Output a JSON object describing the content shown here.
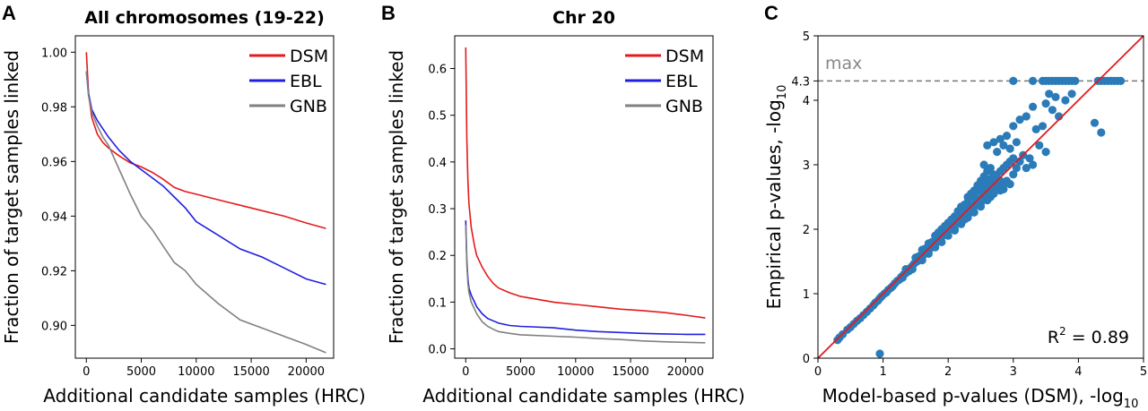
{
  "figure": {
    "panels": [
      {
        "letter": "A"
      },
      {
        "letter": "B"
      },
      {
        "letter": "C"
      }
    ]
  },
  "colors": {
    "DSM": "#e41a1c",
    "EBL": "#1f1fe0",
    "GNB": "#808080",
    "scatter": "#2b7bb9",
    "identity": "#e41a1c",
    "max_line": "#777777"
  },
  "chart_data": [
    {
      "type": "line",
      "panel": "A",
      "title": "All chromosomes (19-22)",
      "xlabel": "Additional candidate samples (HRC)",
      "ylabel": "Fraction of target samples linked",
      "xlim": [
        -1000,
        22500
      ],
      "ylim": [
        0.888,
        1.006
      ],
      "xticks": [
        0,
        5000,
        10000,
        15000,
        20000
      ],
      "yticks": [
        0.9,
        0.92,
        0.94,
        0.96,
        0.98,
        1.0
      ],
      "ytick_labels": [
        "0.90",
        "0.92",
        "0.94",
        "0.96",
        "0.98",
        "1.00"
      ],
      "legend_position": "top-right",
      "series": [
        {
          "name": "DSM",
          "x": [
            0,
            200,
            500,
            1000,
            1500,
            2000,
            3000,
            4000,
            5000,
            6000,
            7000,
            8000,
            9000,
            10000,
            12000,
            14000,
            16000,
            18000,
            20000,
            21800
          ],
          "y": [
            1.0,
            0.985,
            0.976,
            0.97,
            0.967,
            0.965,
            0.962,
            0.9595,
            0.958,
            0.956,
            0.9535,
            0.9505,
            0.949,
            0.948,
            0.946,
            0.944,
            0.942,
            0.94,
            0.9375,
            0.9355
          ]
        },
        {
          "name": "EBL",
          "x": [
            0,
            200,
            500,
            1000,
            1500,
            2000,
            3000,
            4000,
            5000,
            6000,
            7000,
            8000,
            9000,
            10000,
            12000,
            14000,
            16000,
            18000,
            20000,
            21800
          ],
          "y": [
            0.993,
            0.985,
            0.979,
            0.975,
            0.972,
            0.969,
            0.964,
            0.96,
            0.957,
            0.954,
            0.951,
            0.947,
            0.943,
            0.938,
            0.933,
            0.928,
            0.925,
            0.921,
            0.917,
            0.915
          ]
        },
        {
          "name": "GNB",
          "x": [
            0,
            200,
            500,
            1000,
            1500,
            2000,
            3000,
            4000,
            5000,
            6000,
            7000,
            8000,
            9000,
            10000,
            12000,
            14000,
            16000,
            18000,
            20000,
            21800
          ],
          "y": [
            0.993,
            0.984,
            0.978,
            0.973,
            0.969,
            0.966,
            0.957,
            0.948,
            0.94,
            0.935,
            0.929,
            0.923,
            0.92,
            0.915,
            0.908,
            0.902,
            0.899,
            0.896,
            0.893,
            0.89
          ]
        }
      ]
    },
    {
      "type": "line",
      "panel": "B",
      "title": "Chr 20",
      "xlabel": "Additional candidate samples (HRC)",
      "ylabel": "Fraction of target samples linked",
      "xlim": [
        -1000,
        22500
      ],
      "ylim": [
        -0.02,
        0.67
      ],
      "xticks": [
        0,
        5000,
        10000,
        15000,
        20000
      ],
      "yticks": [
        0.0,
        0.1,
        0.2,
        0.3,
        0.4,
        0.5,
        0.6
      ],
      "ytick_labels": [
        "0.0",
        "0.1",
        "0.2",
        "0.3",
        "0.4",
        "0.5",
        "0.6"
      ],
      "legend_position": "top-right",
      "series": [
        {
          "name": "DSM",
          "x": [
            0,
            100,
            200,
            300,
            500,
            800,
            1000,
            1500,
            2000,
            2500,
            3000,
            4000,
            5000,
            6000,
            8000,
            10000,
            12000,
            14000,
            16000,
            18000,
            20000,
            21800
          ],
          "y": [
            0.645,
            0.45,
            0.36,
            0.31,
            0.26,
            0.22,
            0.2,
            0.175,
            0.155,
            0.14,
            0.13,
            0.12,
            0.112,
            0.108,
            0.1,
            0.095,
            0.09,
            0.085,
            0.082,
            0.078,
            0.072,
            0.066
          ]
        },
        {
          "name": "EBL",
          "x": [
            0,
            100,
            200,
            300,
            500,
            800,
            1000,
            1500,
            2000,
            2500,
            3000,
            4000,
            5000,
            6000,
            8000,
            10000,
            12000,
            14000,
            16000,
            18000,
            20000,
            21800
          ],
          "y": [
            0.275,
            0.19,
            0.15,
            0.13,
            0.115,
            0.1,
            0.09,
            0.075,
            0.065,
            0.06,
            0.055,
            0.05,
            0.048,
            0.047,
            0.045,
            0.04,
            0.037,
            0.035,
            0.033,
            0.032,
            0.031,
            0.031
          ]
        },
        {
          "name": "GNB",
          "x": [
            0,
            100,
            200,
            300,
            500,
            800,
            1000,
            1500,
            2000,
            2500,
            3000,
            4000,
            5000,
            6000,
            8000,
            10000,
            12000,
            14000,
            16000,
            18000,
            20000,
            21800
          ],
          "y": [
            0.265,
            0.18,
            0.14,
            0.12,
            0.1,
            0.085,
            0.075,
            0.058,
            0.048,
            0.042,
            0.037,
            0.033,
            0.03,
            0.029,
            0.027,
            0.025,
            0.022,
            0.02,
            0.017,
            0.015,
            0.014,
            0.013
          ]
        }
      ]
    },
    {
      "type": "scatter",
      "panel": "C",
      "title": "",
      "xlabel": "Model-based p-values (DSM), -log",
      "xlabel_sub": "10",
      "ylabel": "Empirical p-values, -log",
      "ylabel_sub": "10",
      "xlim": [
        0,
        5
      ],
      "ylim": [
        0,
        5
      ],
      "xticks": [
        0,
        1,
        2,
        3,
        4,
        5
      ],
      "yticks": [
        0,
        1,
        2,
        3,
        4,
        5
      ],
      "extra_ytick": {
        "value": 4.3,
        "label": "4.3"
      },
      "max_line": {
        "y": 4.3,
        "label": "max"
      },
      "identity_line": true,
      "annotation": {
        "prefix": "R",
        "superscript": "2",
        "rest": " = 0.89"
      },
      "points": [
        [
          0.3,
          0.28
        ],
        [
          0.33,
          0.32
        ],
        [
          0.38,
          0.37
        ],
        [
          0.45,
          0.44
        ],
        [
          0.5,
          0.48
        ],
        [
          0.55,
          0.53
        ],
        [
          0.6,
          0.58
        ],
        [
          0.65,
          0.62
        ],
        [
          0.7,
          0.67
        ],
        [
          0.75,
          0.72
        ],
        [
          0.8,
          0.77
        ],
        [
          0.85,
          0.82
        ],
        [
          0.88,
          0.86
        ],
        [
          0.92,
          0.89
        ],
        [
          0.95,
          0.93
        ],
        [
          0.98,
          0.96
        ],
        [
          1.02,
          1.0
        ],
        [
          1.05,
          1.02
        ],
        [
          1.08,
          1.06
        ],
        [
          1.12,
          1.09
        ],
        [
          1.15,
          1.12
        ],
        [
          1.18,
          1.16
        ],
        [
          1.22,
          1.2
        ],
        [
          1.25,
          1.22
        ],
        [
          1.28,
          1.26
        ],
        [
          1.32,
          1.3
        ],
        [
          1.35,
          1.32
        ],
        [
          1.38,
          1.36
        ],
        [
          1.42,
          1.4
        ],
        [
          1.45,
          1.43
        ],
        [
          1.48,
          1.47
        ],
        [
          1.52,
          1.5
        ],
        [
          1.55,
          1.54
        ],
        [
          1.58,
          1.56
        ],
        [
          1.62,
          1.6
        ],
        [
          1.65,
          1.63
        ],
        [
          1.68,
          1.67
        ],
        [
          1.72,
          1.7
        ],
        [
          1.75,
          1.74
        ],
        [
          1.78,
          1.77
        ],
        [
          1.82,
          1.8
        ],
        [
          1.85,
          1.84
        ],
        [
          1.88,
          1.87
        ],
        [
          1.92,
          1.9
        ],
        [
          1.95,
          1.94
        ],
        [
          1.98,
          1.97
        ],
        [
          2.02,
          2.0
        ],
        [
          2.05,
          2.04
        ],
        [
          2.08,
          2.07
        ],
        [
          2.12,
          2.1
        ],
        [
          2.15,
          2.13
        ],
        [
          2.18,
          2.17
        ],
        [
          2.22,
          2.2
        ],
        [
          2.25,
          2.23
        ],
        [
          2.28,
          2.27
        ],
        [
          2.32,
          2.3
        ],
        [
          2.35,
          2.33
        ],
        [
          2.38,
          2.37
        ],
        [
          2.42,
          2.4
        ],
        [
          2.45,
          2.43
        ],
        [
          2.48,
          2.47
        ],
        [
          2.52,
          2.5
        ],
        [
          2.55,
          2.53
        ],
        [
          2.58,
          2.57
        ],
        [
          1.5,
          1.56
        ],
        [
          1.6,
          1.68
        ],
        [
          1.7,
          1.78
        ],
        [
          1.8,
          1.9
        ],
        [
          1.9,
          2.0
        ],
        [
          2.0,
          2.1
        ],
        [
          2.1,
          2.2
        ],
        [
          2.2,
          2.3
        ],
        [
          2.3,
          2.42
        ],
        [
          2.4,
          2.52
        ],
        [
          2.5,
          2.62
        ],
        [
          2.6,
          2.72
        ],
        [
          1.6,
          1.52
        ],
        [
          1.7,
          1.62
        ],
        [
          1.8,
          1.72
        ],
        [
          1.9,
          1.8
        ],
        [
          2.0,
          1.9
        ],
        [
          2.1,
          2.0
        ],
        [
          2.2,
          2.08
        ],
        [
          2.3,
          2.18
        ],
        [
          2.4,
          2.26
        ],
        [
          2.5,
          2.35
        ],
        [
          2.6,
          2.45
        ],
        [
          2.7,
          2.55
        ],
        [
          1.55,
          1.58
        ],
        [
          1.65,
          1.7
        ],
        [
          1.75,
          1.8
        ],
        [
          1.85,
          1.95
        ],
        [
          1.95,
          2.05
        ],
        [
          2.05,
          2.15
        ],
        [
          2.15,
          2.28
        ],
        [
          2.25,
          2.38
        ],
        [
          2.35,
          2.5
        ],
        [
          2.45,
          2.6
        ],
        [
          2.55,
          2.7
        ],
        [
          2.65,
          2.78
        ],
        [
          2.7,
          2.85
        ],
        [
          2.75,
          2.8
        ],
        [
          2.8,
          2.9
        ],
        [
          2.85,
          2.95
        ],
        [
          2.9,
          3.0
        ],
        [
          2.95,
          3.05
        ],
        [
          3.0,
          3.1
        ],
        [
          2.6,
          2.65
        ],
        [
          2.65,
          2.6
        ],
        [
          2.7,
          2.7
        ],
        [
          2.75,
          2.66
        ],
        [
          2.8,
          2.75
        ],
        [
          2.85,
          2.7
        ],
        [
          2.5,
          2.4
        ],
        [
          2.55,
          2.5
        ],
        [
          2.6,
          2.58
        ],
        [
          2.65,
          2.5
        ],
        [
          2.7,
          2.62
        ],
        [
          2.8,
          2.6
        ],
        [
          2.85,
          2.62
        ],
        [
          2.2,
          2.35
        ],
        [
          2.3,
          2.5
        ],
        [
          2.35,
          2.55
        ],
        [
          2.4,
          2.6
        ],
        [
          2.45,
          2.68
        ],
        [
          2.5,
          2.75
        ],
        [
          2.55,
          2.82
        ],
        [
          2.6,
          2.9
        ],
        [
          2.3,
          2.2
        ],
        [
          2.35,
          2.28
        ],
        [
          2.4,
          2.35
        ],
        [
          2.45,
          2.4
        ],
        [
          2.5,
          2.48
        ],
        [
          2.1,
          1.98
        ],
        [
          2.2,
          2.12
        ],
        [
          2.25,
          2.15
        ],
        [
          1.4,
          1.35
        ],
        [
          1.45,
          1.38
        ],
        [
          1.35,
          1.38
        ],
        [
          1.3,
          1.25
        ],
        [
          2.9,
          2.75
        ],
        [
          2.95,
          2.7
        ],
        [
          3.0,
          2.85
        ],
        [
          3.05,
          2.95
        ],
        [
          3.1,
          3.05
        ],
        [
          3.2,
          2.95
        ],
        [
          3.15,
          3.15
        ],
        [
          2.6,
          3.3
        ],
        [
          2.7,
          3.35
        ],
        [
          2.8,
          3.4
        ],
        [
          2.9,
          3.45
        ],
        [
          3.0,
          3.6
        ],
        [
          3.1,
          3.7
        ],
        [
          3.2,
          3.75
        ],
        [
          2.75,
          3.2
        ],
        [
          2.85,
          3.3
        ],
        [
          3.3,
          3.9
        ],
        [
          3.5,
          3.95
        ],
        [
          3.55,
          4.1
        ],
        [
          3.6,
          3.85
        ],
        [
          3.7,
          3.75
        ],
        [
          3.8,
          4.0
        ],
        [
          3.9,
          4.1
        ],
        [
          3.65,
          4.05
        ],
        [
          3.4,
          3.3
        ],
        [
          3.5,
          3.2
        ],
        [
          3.35,
          3.55
        ],
        [
          3.45,
          3.6
        ],
        [
          4.35,
          3.5
        ],
        [
          4.25,
          3.65
        ],
        [
          3.25,
          3.1
        ],
        [
          3.3,
          3.0
        ],
        [
          2.95,
          3.25
        ],
        [
          3.05,
          3.35
        ],
        [
          2.65,
          2.95
        ],
        [
          2.55,
          3.0
        ],
        [
          0.95,
          0.07
        ],
        [
          3.0,
          4.3
        ],
        [
          3.3,
          4.3
        ],
        [
          3.45,
          4.3
        ],
        [
          3.5,
          4.3
        ],
        [
          3.55,
          4.3
        ],
        [
          3.6,
          4.3
        ],
        [
          3.65,
          4.3
        ],
        [
          3.7,
          4.3
        ],
        [
          3.75,
          4.3
        ],
        [
          3.8,
          4.3
        ],
        [
          3.85,
          4.3
        ],
        [
          3.9,
          4.3
        ],
        [
          3.95,
          4.3
        ],
        [
          4.3,
          4.3
        ],
        [
          4.35,
          4.3
        ],
        [
          4.4,
          4.3
        ],
        [
          4.45,
          4.3
        ],
        [
          4.5,
          4.3
        ],
        [
          4.55,
          4.3
        ],
        [
          4.6,
          4.3
        ],
        [
          4.65,
          4.3
        ]
      ]
    }
  ]
}
